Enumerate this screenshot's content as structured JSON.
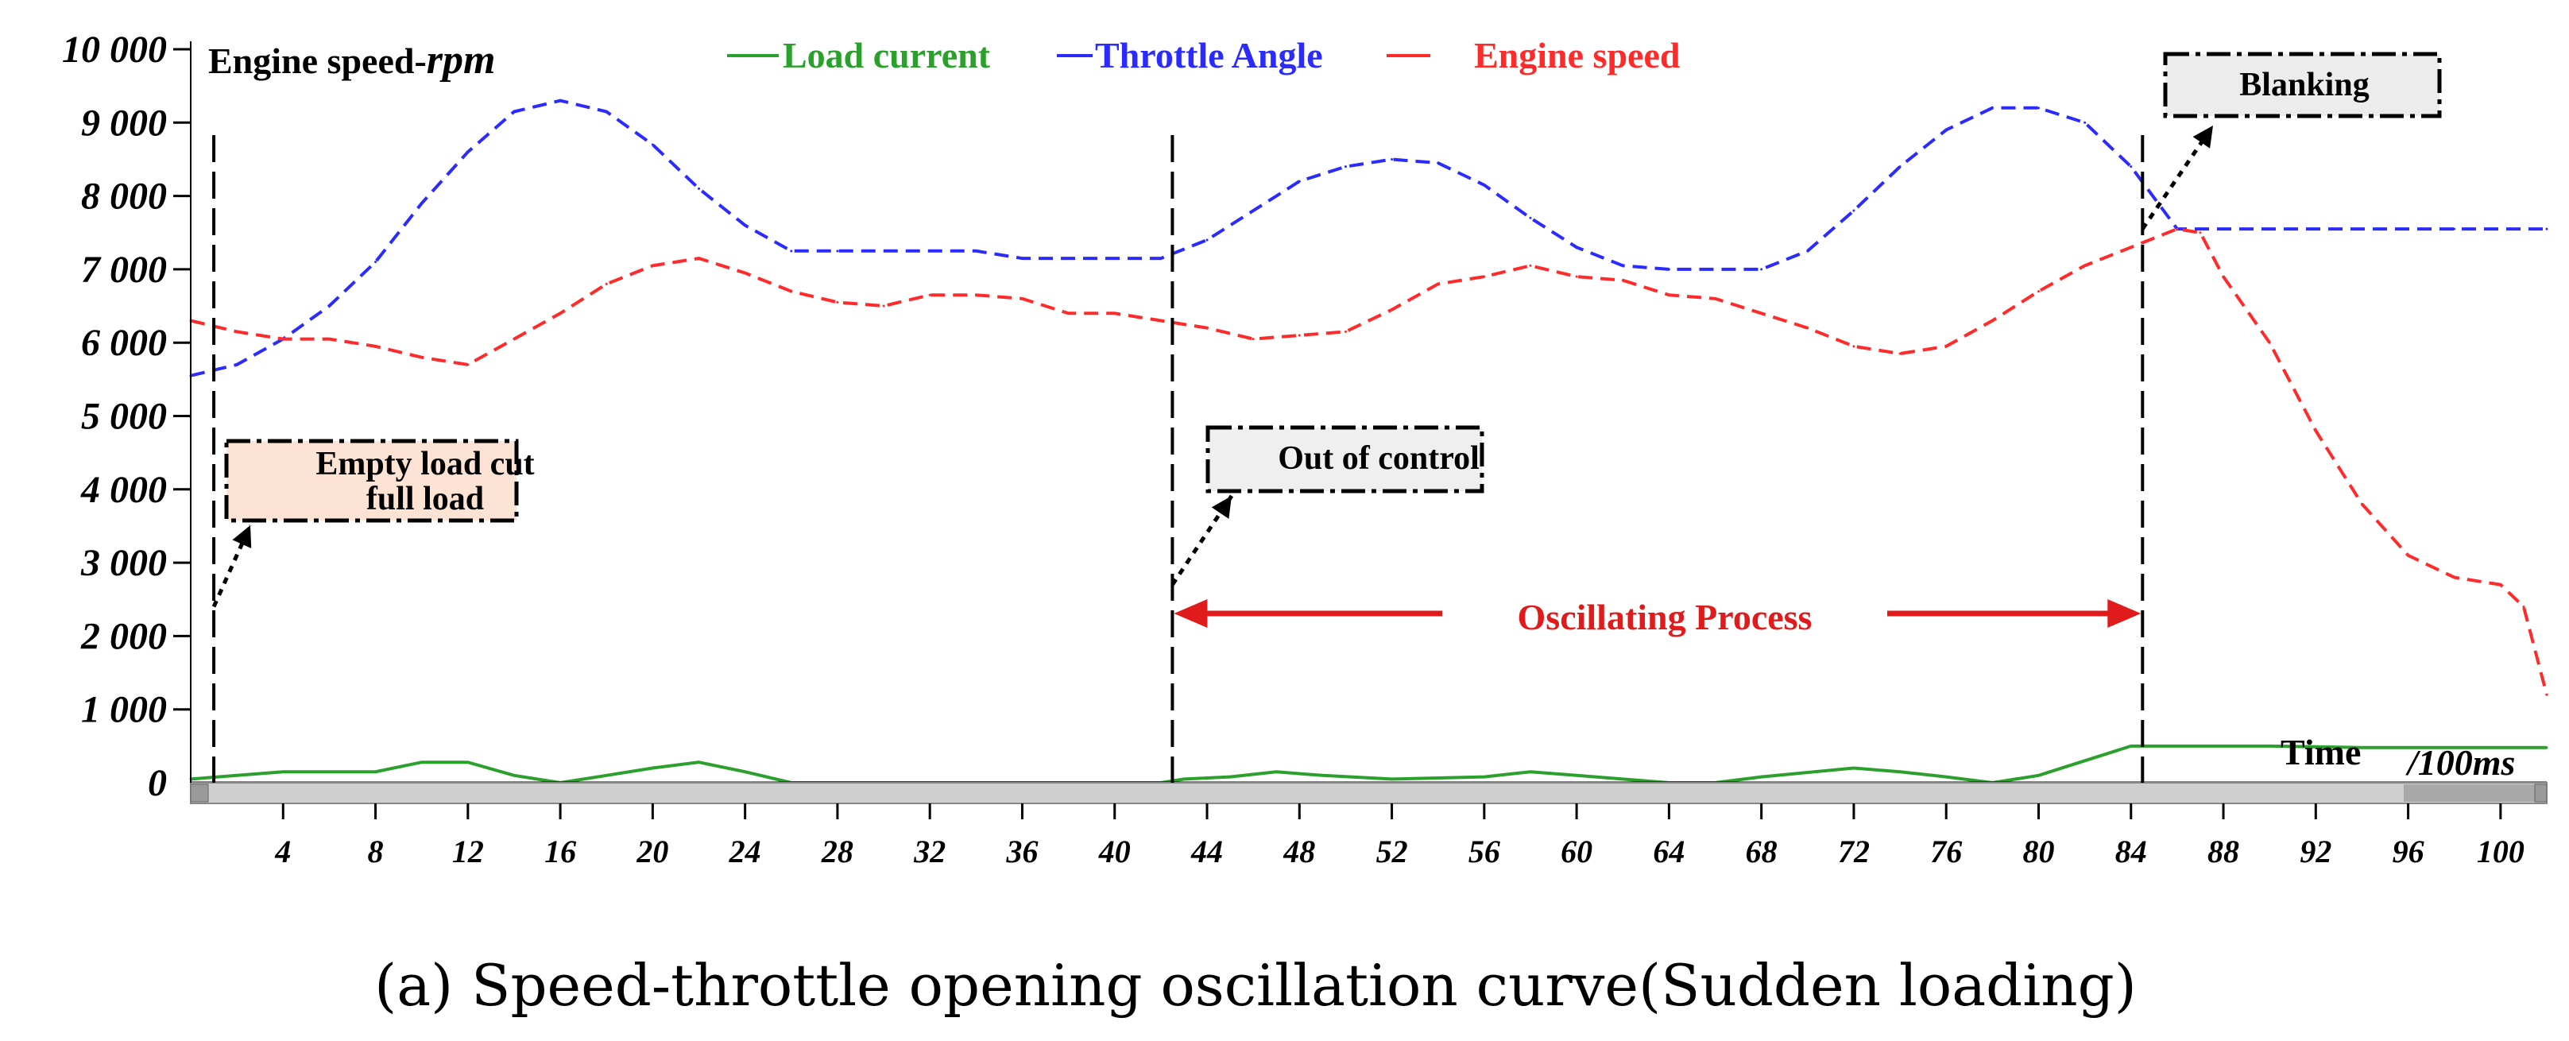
{
  "chart_data": {
    "type": "line",
    "title": "",
    "caption": "(a) Speed-throttle opening oscillation curve(Sudden loading)",
    "ylabel": {
      "prefix": "Engine speed-",
      "unit": "rpm"
    },
    "xlabel": {
      "main": "Time",
      "unit": "/100ms"
    },
    "xlim": [
      0,
      102
    ],
    "ylim": [
      0,
      10000
    ],
    "x_ticks": [
      4,
      8,
      12,
      16,
      20,
      24,
      28,
      32,
      36,
      40,
      44,
      48,
      52,
      56,
      60,
      64,
      68,
      72,
      76,
      80,
      84,
      88,
      92,
      96,
      100
    ],
    "x_tick_labels": [
      "4",
      "8",
      "12",
      "16",
      "20",
      "24",
      "28",
      "32",
      "36",
      "40",
      "44",
      "48",
      "52",
      "56",
      "60",
      "64",
      "68",
      "72",
      "76",
      "80",
      "84",
      "88",
      "92",
      "96",
      "100"
    ],
    "y_ticks": [
      0,
      1000,
      2000,
      3000,
      4000,
      5000,
      6000,
      7000,
      8000,
      9000,
      10000
    ],
    "y_tick_labels": [
      "0",
      "1 000",
      "2 000",
      "3 000",
      "4 000",
      "5 000",
      "6 000",
      "7 000",
      "8 000",
      "9 000",
      "10 000"
    ],
    "legend": [
      "Load current",
      "Throttle Angle",
      "Engine speed"
    ],
    "series": [
      {
        "name": "Load current",
        "color": "#2ca02c",
        "dash": "solid",
        "points": [
          [
            0,
            50
          ],
          [
            2,
            100
          ],
          [
            4,
            150
          ],
          [
            8,
            150
          ],
          [
            10,
            280
          ],
          [
            12,
            280
          ],
          [
            14,
            100
          ],
          [
            16,
            0
          ],
          [
            18,
            100
          ],
          [
            20,
            200
          ],
          [
            22,
            280
          ],
          [
            24,
            150
          ],
          [
            26,
            0
          ],
          [
            30,
            0
          ],
          [
            34,
            0
          ],
          [
            38,
            0
          ],
          [
            42,
            0
          ],
          [
            43,
            50
          ],
          [
            45,
            80
          ],
          [
            47,
            150
          ],
          [
            49,
            100
          ],
          [
            52,
            50
          ],
          [
            56,
            80
          ],
          [
            58,
            150
          ],
          [
            60,
            100
          ],
          [
            62,
            50
          ],
          [
            64,
            0
          ],
          [
            66,
            0
          ],
          [
            68,
            80
          ],
          [
            72,
            200
          ],
          [
            74,
            150
          ],
          [
            76,
            80
          ],
          [
            78,
            0
          ],
          [
            80,
            100
          ],
          [
            82,
            300
          ],
          [
            84,
            500
          ],
          [
            86,
            500
          ],
          [
            90,
            500
          ],
          [
            94,
            480
          ],
          [
            98,
            480
          ],
          [
            102,
            480
          ]
        ]
      },
      {
        "name": "Throttle Angle",
        "color": "#2b2bff",
        "dash": "dashed",
        "points": [
          [
            0,
            5550
          ],
          [
            2,
            5700
          ],
          [
            4,
            6050
          ],
          [
            6,
            6500
          ],
          [
            8,
            7100
          ],
          [
            10,
            7900
          ],
          [
            12,
            8600
          ],
          [
            14,
            9150
          ],
          [
            16,
            9300
          ],
          [
            18,
            9150
          ],
          [
            20,
            8700
          ],
          [
            22,
            8100
          ],
          [
            24,
            7600
          ],
          [
            26,
            7250
          ],
          [
            28,
            7250
          ],
          [
            32,
            7250
          ],
          [
            34,
            7250
          ],
          [
            36,
            7150
          ],
          [
            40,
            7150
          ],
          [
            42,
            7150
          ],
          [
            44,
            7400
          ],
          [
            46,
            7800
          ],
          [
            48,
            8200
          ],
          [
            50,
            8400
          ],
          [
            52,
            8500
          ],
          [
            54,
            8450
          ],
          [
            56,
            8150
          ],
          [
            58,
            7700
          ],
          [
            60,
            7300
          ],
          [
            62,
            7050
          ],
          [
            64,
            7000
          ],
          [
            68,
            7000
          ],
          [
            70,
            7250
          ],
          [
            72,
            7800
          ],
          [
            74,
            8400
          ],
          [
            76,
            8900
          ],
          [
            78,
            9200
          ],
          [
            80,
            9200
          ],
          [
            82,
            9000
          ],
          [
            84,
            8400
          ],
          [
            86,
            7550
          ],
          [
            90,
            7550
          ],
          [
            94,
            7550
          ],
          [
            98,
            7550
          ],
          [
            102,
            7550
          ]
        ]
      },
      {
        "name": "Engine speed",
        "color": "#ff2b2b",
        "dash": "dashed",
        "points": [
          [
            0,
            6300
          ],
          [
            2,
            6150
          ],
          [
            4,
            6050
          ],
          [
            6,
            6050
          ],
          [
            8,
            5950
          ],
          [
            10,
            5800
          ],
          [
            12,
            5700
          ],
          [
            14,
            6050
          ],
          [
            16,
            6400
          ],
          [
            18,
            6800
          ],
          [
            20,
            7050
          ],
          [
            22,
            7150
          ],
          [
            24,
            6950
          ],
          [
            26,
            6700
          ],
          [
            28,
            6550
          ],
          [
            30,
            6500
          ],
          [
            32,
            6650
          ],
          [
            34,
            6650
          ],
          [
            36,
            6600
          ],
          [
            38,
            6400
          ],
          [
            40,
            6400
          ],
          [
            42,
            6300
          ],
          [
            44,
            6200
          ],
          [
            46,
            6050
          ],
          [
            48,
            6100
          ],
          [
            50,
            6150
          ],
          [
            52,
            6450
          ],
          [
            54,
            6800
          ],
          [
            56,
            6900
          ],
          [
            58,
            7050
          ],
          [
            60,
            6900
          ],
          [
            62,
            6850
          ],
          [
            64,
            6650
          ],
          [
            66,
            6600
          ],
          [
            68,
            6400
          ],
          [
            70,
            6200
          ],
          [
            72,
            5950
          ],
          [
            74,
            5850
          ],
          [
            76,
            5950
          ],
          [
            78,
            6300
          ],
          [
            80,
            6700
          ],
          [
            82,
            7050
          ],
          [
            84,
            7300
          ],
          [
            86,
            7550
          ],
          [
            87,
            7500
          ],
          [
            88,
            6900
          ],
          [
            90,
            6000
          ],
          [
            92,
            4800
          ],
          [
            94,
            3800
          ],
          [
            96,
            3100
          ],
          [
            98,
            2800
          ],
          [
            100,
            2700
          ],
          [
            101,
            2400
          ],
          [
            102,
            1200
          ]
        ]
      }
    ],
    "annotations": [
      {
        "label": "empty-load-cut",
        "lines": [
          "Empty load cut",
          "full load"
        ],
        "x": 1,
        "y": 2400
      },
      {
        "label": "out-of-control",
        "lines": [
          "Out of control"
        ],
        "x": 42.5,
        "y": 2700
      },
      {
        "label": "blanking",
        "lines": [
          "Blanking"
        ],
        "x": 84.5,
        "y": 7550
      }
    ],
    "oscillating_process": {
      "label": "Oscillating Process",
      "x_start": 42.5,
      "x_end": 84.5,
      "y": 2200,
      "color": "#e01b1b"
    },
    "vertical_markers": [
      1,
      42.5,
      84.5
    ]
  }
}
